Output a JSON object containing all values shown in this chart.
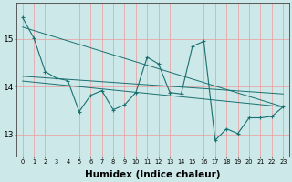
{
  "bg_color": "#cce8e8",
  "grid_color": "#ee9999",
  "line_color": "#1a7070",
  "xlabel": "Humidex (Indice chaleur)",
  "xlabel_fontsize": 7.5,
  "ylim": [
    12.55,
    15.75
  ],
  "xlim": [
    -0.5,
    23.5
  ],
  "yticks": [
    13,
    14,
    15
  ],
  "xticks": [
    0,
    1,
    2,
    3,
    4,
    5,
    6,
    7,
    8,
    9,
    10,
    11,
    12,
    13,
    14,
    15,
    16,
    17,
    18,
    19,
    20,
    21,
    22,
    23
  ],
  "line1_x": [
    0,
    1,
    2,
    3,
    4,
    5,
    6,
    7,
    8,
    9,
    10,
    11,
    12,
    13,
    14,
    15,
    16,
    17,
    18,
    19,
    20,
    21,
    22,
    23
  ],
  "line1_y": [
    15.45,
    15.02,
    14.32,
    14.18,
    14.13,
    13.48,
    13.82,
    13.92,
    13.52,
    13.62,
    13.88,
    14.62,
    14.48,
    13.88,
    13.85,
    14.85,
    14.95,
    12.88,
    13.12,
    13.02,
    13.35,
    13.35,
    13.38,
    13.58
  ],
  "trend1_x": [
    0,
    23
  ],
  "trend1_y": [
    15.25,
    13.58
  ],
  "trend2_x": [
    0,
    23
  ],
  "trend2_y": [
    14.22,
    13.85
  ],
  "trend3_x": [
    0,
    23
  ],
  "trend3_y": [
    14.12,
    13.58
  ]
}
